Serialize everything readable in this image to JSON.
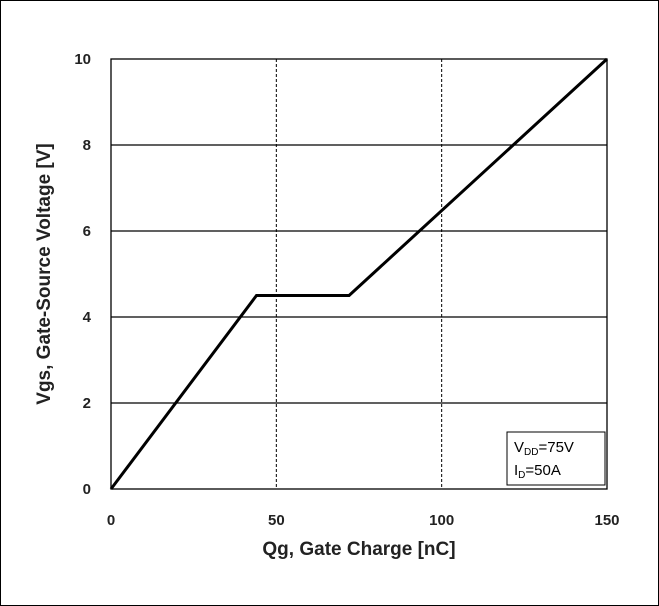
{
  "chart_data": {
    "type": "line",
    "xlabel": "Qg, Gate Charge [nC]",
    "ylabel": "Vgs, Gate-Source Voltage [V]",
    "xlim": [
      0,
      150
    ],
    "ylim": [
      0,
      10
    ],
    "xticks": [
      0,
      50,
      100,
      150
    ],
    "yticks": [
      0,
      2,
      4,
      6,
      8,
      10
    ],
    "x_tick_labels": [
      "0",
      "50",
      "100",
      "150"
    ],
    "y_tick_labels": [
      "0",
      "2",
      "4",
      "6",
      "8",
      "10"
    ],
    "grid": true,
    "series": [
      {
        "x": [
          0,
          44,
          72,
          150
        ],
        "y": [
          0,
          4.5,
          4.5,
          10
        ]
      }
    ],
    "annotation": {
      "position": "bottom-right",
      "lines": [
        {
          "main": "V",
          "sub": "DD",
          "rest": "=75V"
        },
        {
          "main": "I",
          "sub": "D",
          "rest": "=50A"
        }
      ]
    }
  }
}
